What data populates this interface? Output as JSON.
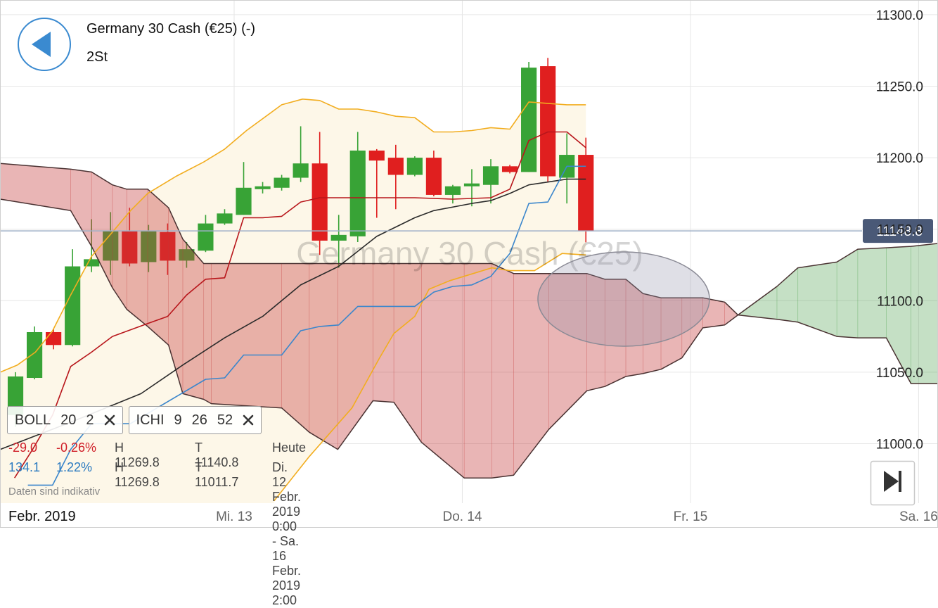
{
  "header": {
    "title": "Germany 30 Cash (€25) (-)",
    "timeframe": "2St"
  },
  "chart_data": {
    "type": "candlestick",
    "watermark": "Germany 30 Cash (€25)",
    "x": [
      1,
      3,
      5,
      7,
      9,
      11,
      13,
      15,
      17,
      19,
      21,
      23,
      25,
      27,
      29,
      31,
      33,
      35,
      37,
      39,
      41,
      43,
      45,
      47,
      49,
      51,
      53,
      55,
      57,
      59,
      61
    ],
    "open": [
      11020,
      11046,
      11078,
      11069,
      11124,
      11128,
      11149,
      11127,
      11148,
      11128,
      11135,
      11154,
      11160,
      11178,
      11179,
      11186,
      11196,
      11142,
      11145,
      11205,
      11200,
      11188,
      11200,
      11174,
      11180,
      11181,
      11194,
      11190,
      11264,
      11186,
      11202
    ],
    "high": [
      11050,
      11082,
      11080,
      11136,
      11157,
      11162,
      11165,
      11153,
      11154,
      11141,
      11160,
      11164,
      11197,
      11183,
      11188,
      11222,
      11218,
      11160,
      11218,
      11206,
      11209,
      11201,
      11205,
      11181,
      11192,
      11199,
      11195,
      11267,
      11269.8,
      11217,
      11214
    ],
    "low": [
      11011.7,
      11045,
      11066,
      11068,
      11120,
      11118,
      11124,
      11120,
      11118,
      11123,
      11134,
      11153,
      11160,
      11175,
      11177,
      11183,
      11132,
      11123,
      11141,
      11158,
      11164,
      11187,
      11173,
      11168,
      11166,
      11168,
      11189,
      11190,
      11183,
      11168,
      11140.8
    ],
    "close": [
      11047,
      11078,
      11069,
      11124,
      11129,
      11149,
      11126,
      11149,
      11128,
      11136,
      11154,
      11161,
      11179,
      11180,
      11186,
      11196,
      11142,
      11146,
      11205,
      11198,
      11188,
      11200,
      11174,
      11180,
      11182,
      11194,
      11190,
      11263,
      11187,
      11202,
      11148.8
    ],
    "up_color": "#38a336",
    "down_color": "#e01f1f",
    "xlim": [
      -0.63,
      98.04
    ],
    "xticks": [
      {
        "value": 24,
        "label": "Mi. 13"
      },
      {
        "value": 48,
        "label": "Do. 14"
      },
      {
        "value": 72,
        "label": "Fr. 15"
      },
      {
        "value": 96,
        "label": "Sa. 16"
      }
    ],
    "x_start_label": "Febr. 2019",
    "ylim": [
      10958.4,
      11310.3
    ],
    "yticks": [
      {
        "value": 11000,
        "label": "11000.0"
      },
      {
        "value": 11050,
        "label": "11050.0"
      },
      {
        "value": 11100,
        "label": "11100.0"
      },
      {
        "value": 11150,
        "label": "11150.0"
      },
      {
        "value": 11200,
        "label": "11200.0"
      },
      {
        "value": 11250,
        "label": "11250.0"
      },
      {
        "value": 11300,
        "label": "11300.0"
      }
    ],
    "grid": true,
    "last_price": {
      "value": 11148.8,
      "label": "11148.8"
    },
    "bands": {
      "color": "#f2ad1f",
      "middle_color": "#2b2b2b",
      "fill": "#fdf7e8",
      "upper": {
        "x": [
          -0.6,
          1.2,
          3.1,
          4.9,
          6.8,
          9.0,
          11.2,
          13.1,
          14.9,
          17.9,
          20.8,
          23.0,
          25.3,
          29.0,
          31.2,
          33.0,
          35.0,
          37.0,
          39.0,
          41.0,
          43.0,
          45.0,
          47.0,
          49.0,
          51.0,
          53.0,
          55.0,
          57.0,
          59.0,
          61.0
        ],
        "values": [
          11050,
          11055,
          11064,
          11079,
          11104,
          11131,
          11148,
          11163,
          11175,
          11187,
          11197,
          11206,
          11219,
          11237,
          11241,
          11240,
          11234,
          11234,
          11232,
          11229,
          11228,
          11218,
          11218,
          11219,
          11221,
          11220,
          11239,
          11238,
          11237,
          11237
        ]
      },
      "middle": {
        "x": [
          -0.6,
          6.8,
          14.2,
          18.6,
          23.0,
          27.0,
          31.0,
          35.0,
          39.0,
          43.0,
          45.0,
          49.0,
          51.0,
          53.0,
          55.0,
          57.0,
          59.0,
          61.0
        ],
        "values": [
          10996,
          11015,
          11035,
          11055,
          11074,
          11089,
          11111,
          11124,
          11145,
          11158,
          11163,
          11168,
          11170,
          11175,
          11181,
          11183,
          11185,
          11185
        ]
      },
      "lower": {
        "x": [
          28.2,
          31.9,
          36.4,
          39.3,
          40.8,
          43.0,
          44.5,
          46.7,
          51.1,
          53.0,
          55.6,
          58.5,
          61.0
        ],
        "values": [
          10960,
          10991,
          11025,
          11060,
          11077,
          11089,
          11108,
          11114,
          11123,
          11121,
          11121,
          11133,
          11132
        ]
      }
    },
    "lines": [
      {
        "color": "#b8161b",
        "x": [
          0.9,
          2.8,
          4.9,
          6.8,
          9.0,
          11.2,
          14.9,
          17.0,
          19.0,
          21.0,
          23.0,
          25.0,
          27.0,
          29.0,
          31.0,
          33.0,
          35.0,
          39.0,
          43.0,
          47.0,
          51.0,
          53.0,
          55.0,
          57.0,
          59.0,
          61.0
        ],
        "values": [
          10976,
          10996,
          11020,
          11054,
          11064,
          11075,
          11084,
          11089,
          11104,
          11115,
          11116,
          11158,
          11158,
          11159,
          11169,
          11172,
          11172,
          11172,
          11172,
          11171,
          11172,
          11178,
          11212,
          11218,
          11218,
          11207
        ]
      },
      {
        "color": "#3a86cc",
        "x": [
          2.3,
          4.9,
          6.8,
          9.0,
          13.1,
          21.0,
          23.0,
          25.0,
          29.0,
          31.0,
          33.0,
          35.0,
          37.0,
          39.0,
          43.0,
          45.0,
          47.0,
          49.0,
          51.0,
          53.0,
          55.0,
          57.0,
          59.0,
          61.0
        ],
        "values": [
          10971,
          10971,
          10996,
          11014,
          11014,
          11045,
          11046,
          11062,
          11062,
          11079,
          11082,
          11083,
          11096,
          11096,
          11096,
          11106,
          11110,
          11111,
          11117,
          11133,
          11168,
          11169,
          11194,
          11194
        ]
      }
    ],
    "cloud": {
      "up_color": "#4aa04a",
      "down_color": "#c43c3c",
      "outline": "#4a3232",
      "x": [
        -0.6,
        6.8,
        9.0,
        11.2,
        12.7,
        14.9,
        17.1,
        18.6,
        20.8,
        21.6,
        29.0,
        31.9,
        34.9,
        38.6,
        40.8,
        43.7,
        48.2,
        51.1,
        53.4,
        57.1,
        61.1,
        63.0,
        65.2,
        67.0,
        68.9,
        71.1,
        73.3,
        75.6,
        77.0,
        81.1,
        83.3,
        87.4,
        89.6,
        92.6,
        95.2,
        98.0
      ],
      "span_a": [
        11171,
        11163,
        11138,
        11109,
        11094,
        11082,
        11069,
        11035,
        11031,
        11028,
        11025,
        11008,
        10996,
        11030,
        11029,
        11001,
        10976,
        10976,
        10978,
        11010,
        11037,
        11040,
        11047,
        11049,
        11052,
        11060,
        11081,
        11083,
        11090,
        11110,
        11123,
        11127,
        11136,
        11137,
        11138,
        11140
      ],
      "span_b": [
        11196,
        11192,
        11190,
        11181,
        11178,
        11178,
        11165,
        11143,
        11126,
        11126,
        11126,
        11126,
        11126,
        11126,
        11126,
        11126,
        11126,
        11126,
        11119,
        11119,
        11119,
        11115,
        11115,
        11105,
        11102,
        11102,
        11102,
        11099,
        11090,
        11087,
        11085,
        11075,
        11074,
        11074,
        11042,
        11042
      ]
    }
  },
  "indicators": [
    {
      "name": "BOLL",
      "params": [
        20,
        2
      ]
    },
    {
      "name": "ICHI",
      "params": [
        9,
        26,
        52
      ]
    }
  ],
  "stats": [
    {
      "change": "-29.0",
      "change_pct": "-0.26%",
      "high": "H 11269.8",
      "low": "T 11140.8",
      "period": "Heute",
      "color": "#d0202a"
    },
    {
      "change": "134.1",
      "change_pct": "1.22%",
      "high": "H 11269.8",
      "low": "T 11011.7",
      "period": "Di. 12 Febr. 2019 0:00 - Sa. 16 Febr. 2019 2:00",
      "color": "#2a7ac0"
    }
  ],
  "footnote": "Daten sind indikativ"
}
